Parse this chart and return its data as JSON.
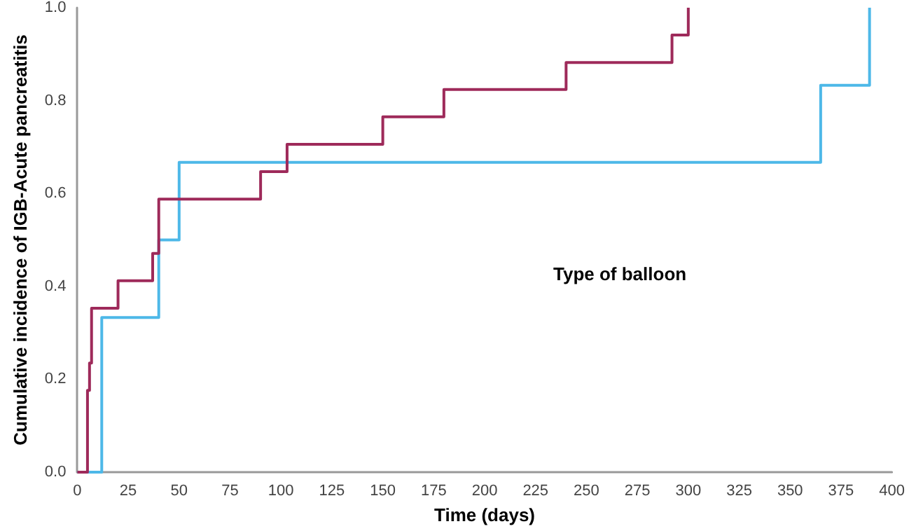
{
  "chart_data": {
    "type": "step",
    "xlabel": "Time (days)",
    "ylabel": "Cumulative incidence of IGB-Acute pancreatitis",
    "legend_title": "Type of balloon",
    "series": [
      {
        "color": "#4db8e8",
        "x": [
          0,
          12,
          40,
          50,
          365,
          389
        ],
        "values": [
          0,
          0.333,
          0.5,
          0.667,
          0.833,
          1.0
        ]
      },
      {
        "color": "#9e2a5a",
        "x": [
          0,
          5,
          6,
          7,
          20,
          37,
          40,
          90,
          103,
          150,
          180,
          240,
          292,
          300
        ],
        "values": [
          0,
          0.176,
          0.235,
          0.353,
          0.412,
          0.471,
          0.588,
          0.647,
          0.706,
          0.765,
          0.824,
          0.882,
          0.941,
          1.0
        ]
      }
    ],
    "xlim": [
      0,
      400
    ],
    "xticks": [
      0,
      25,
      50,
      75,
      100,
      125,
      150,
      175,
      200,
      225,
      250,
      275,
      300,
      325,
      350,
      375,
      400
    ],
    "ylim": [
      0,
      1.0
    ],
    "yticks": [
      {
        "value": 0,
        "label": "0.0"
      },
      {
        "value": 0.2,
        "label": "0.2"
      },
      {
        "value": 0.4,
        "label": "0.4"
      },
      {
        "value": 0.6,
        "label": "0.6"
      },
      {
        "value": 0.8,
        "label": "0.8"
      },
      {
        "value": 1.0,
        "label": "1.0"
      }
    ],
    "grid": false,
    "marker": "none",
    "line_style": "solid"
  }
}
